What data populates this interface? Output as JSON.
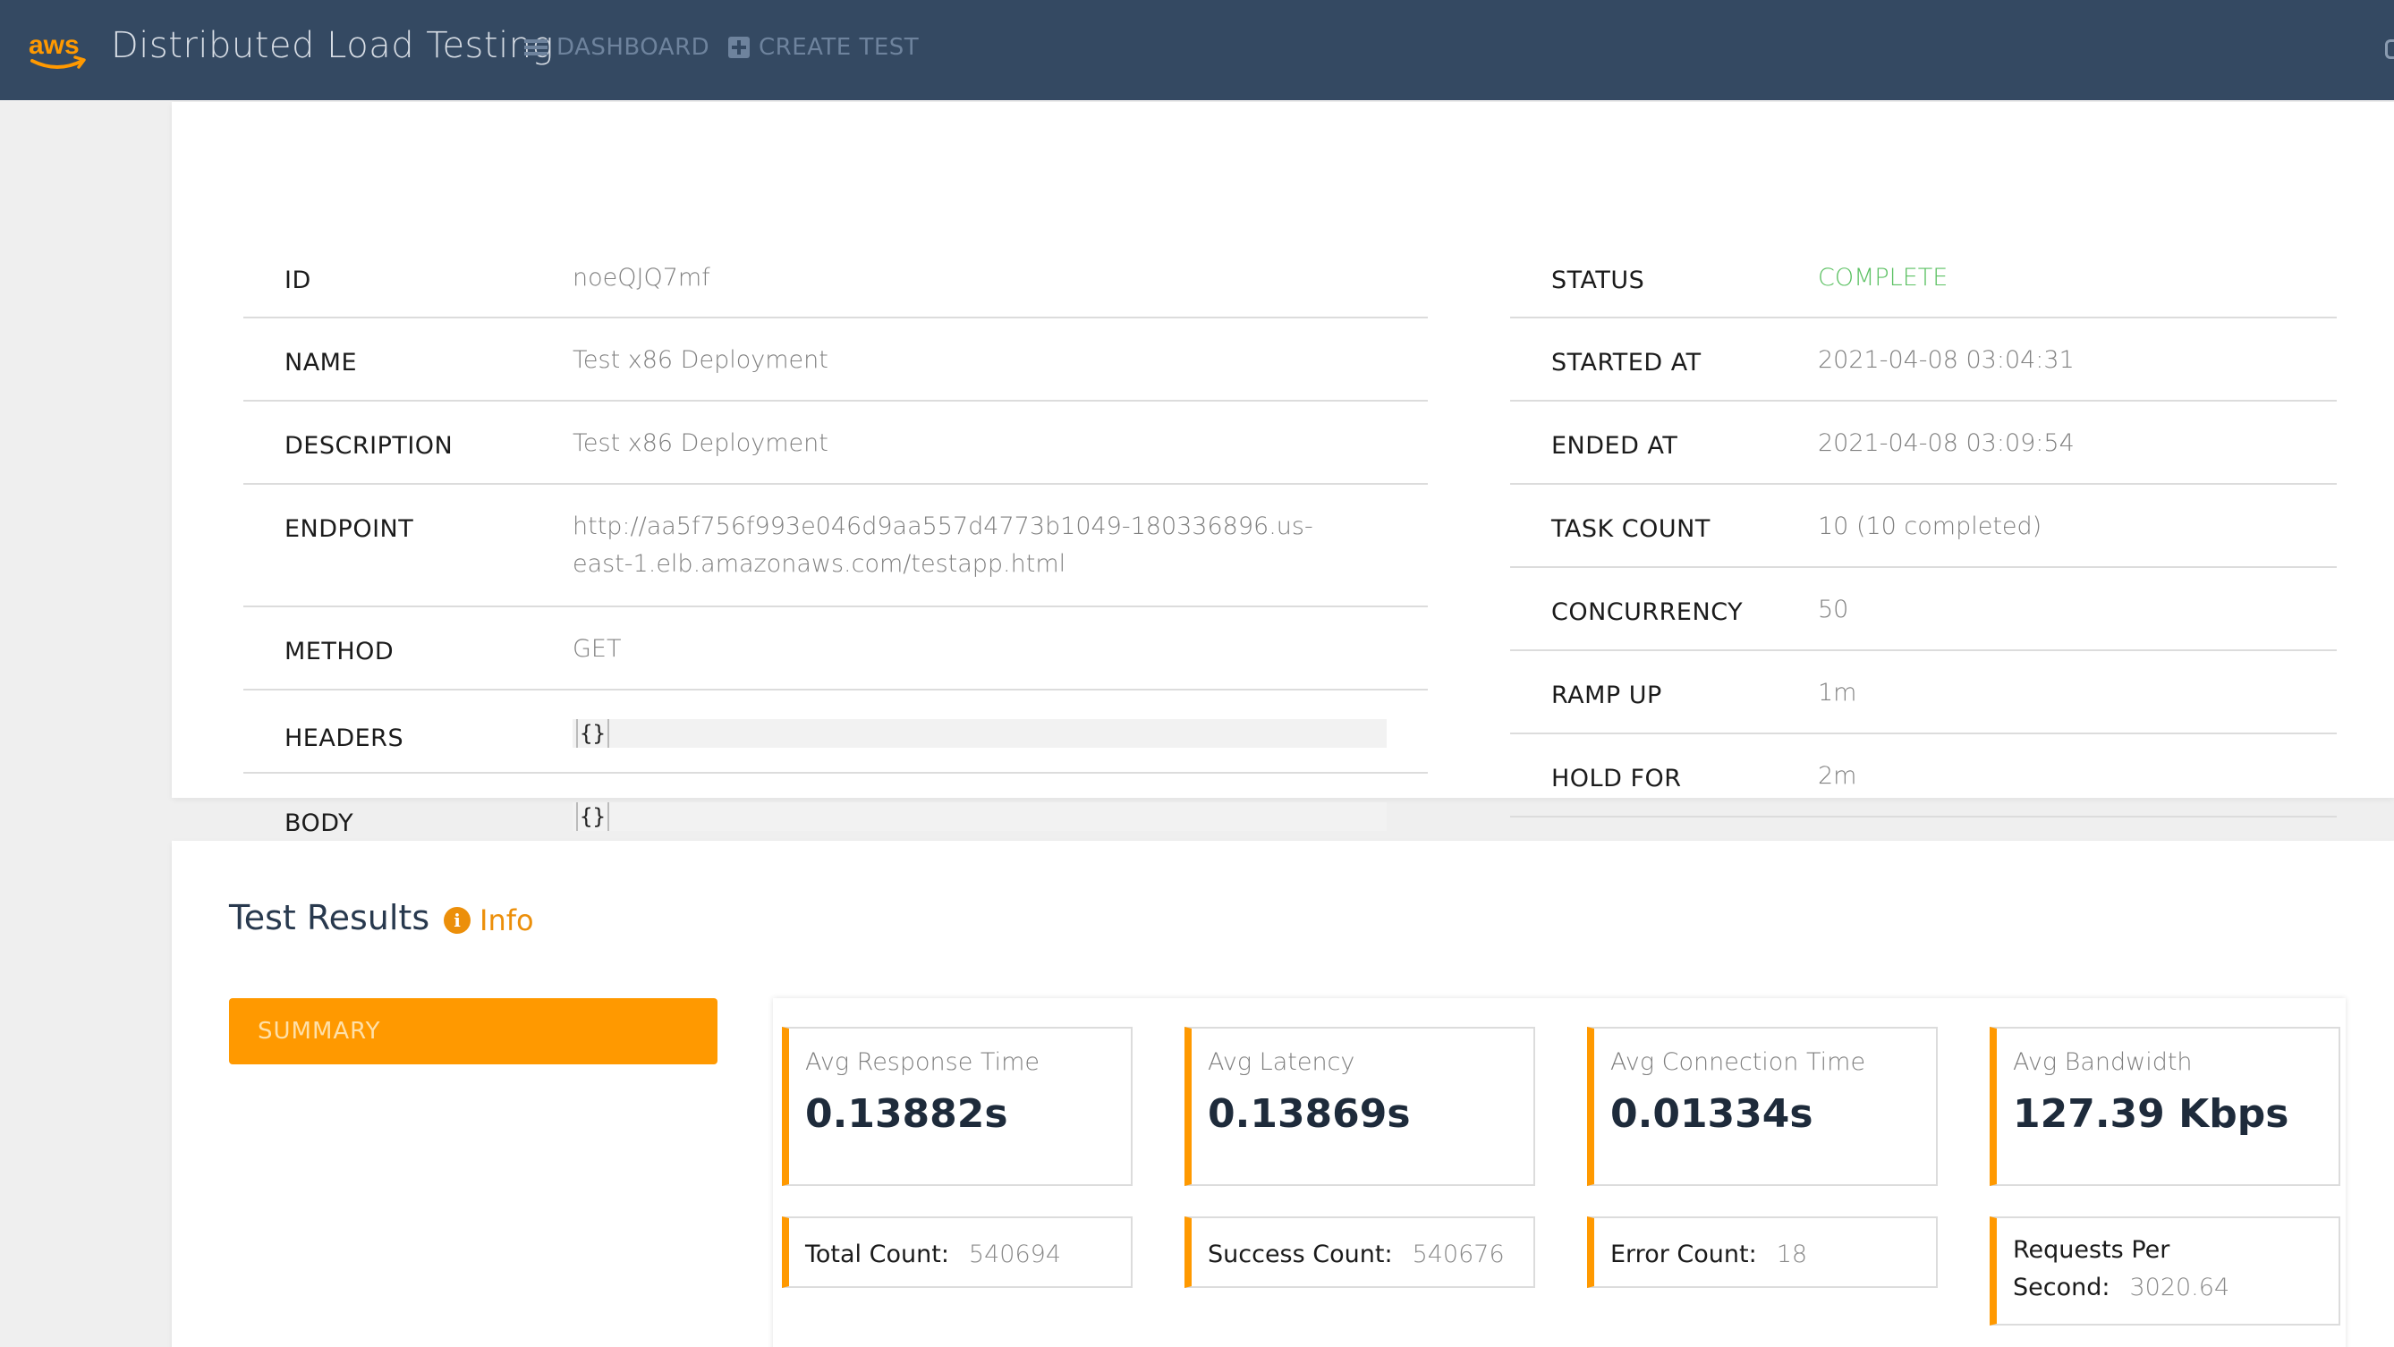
{
  "navbar": {
    "logo_text": "aws",
    "brand": "Distributed Load Testing",
    "dashboard_label": "DASHBOARD",
    "create_test_label": "CREATE TEST"
  },
  "details": {
    "left": [
      {
        "label": "ID",
        "value": "noeQJQ7mf"
      },
      {
        "label": "NAME",
        "value": "Test x86 Deployment"
      },
      {
        "label": "DESCRIPTION",
        "value": "Test x86 Deployment"
      },
      {
        "label": "ENDPOINT",
        "value_line1": "http://aa5f756f993e046d9aa557d4773b1049-180336896.us-",
        "value_line2": "east-1.elb.amazonaws.com/testapp.html"
      },
      {
        "label": "METHOD",
        "value": "GET"
      },
      {
        "label": "HEADERS",
        "value": "{}"
      },
      {
        "label": "BODY",
        "value": "{}"
      }
    ],
    "right": [
      {
        "label": "STATUS",
        "value": "COMPLETE"
      },
      {
        "label": "STARTED AT",
        "value": "2021-04-08 03:04:31"
      },
      {
        "label": "ENDED AT",
        "value": "2021-04-08 03:09:54"
      },
      {
        "label": "TASK COUNT",
        "value": "10 (10 completed)"
      },
      {
        "label": "CONCURRENCY",
        "value": "50"
      },
      {
        "label": "RAMP UP",
        "value": "1m"
      },
      {
        "label": "HOLD FOR",
        "value": "2m"
      }
    ],
    "status_color": "#5cc163"
  },
  "results": {
    "title": "Test Results",
    "info_label": "Info",
    "summary_tab": "SUMMARY",
    "stats": [
      {
        "label": "Avg Response Time",
        "value": "0.13882s"
      },
      {
        "label": "Avg Latency",
        "value": "0.13869s"
      },
      {
        "label": "Avg Connection Time",
        "value": "0.01334s"
      },
      {
        "label": "Avg Bandwidth",
        "value": "127.39 Kbps"
      }
    ],
    "counts": [
      {
        "label": "Total Count:",
        "value": "540694"
      },
      {
        "label": "Success Count:",
        "value": "540676"
      },
      {
        "label": "Error Count:",
        "value": "18"
      },
      {
        "label_line1": "Requests Per",
        "label_line2": "Second:",
        "value": "3020.64"
      }
    ],
    "accent_color": "#ff9900"
  }
}
